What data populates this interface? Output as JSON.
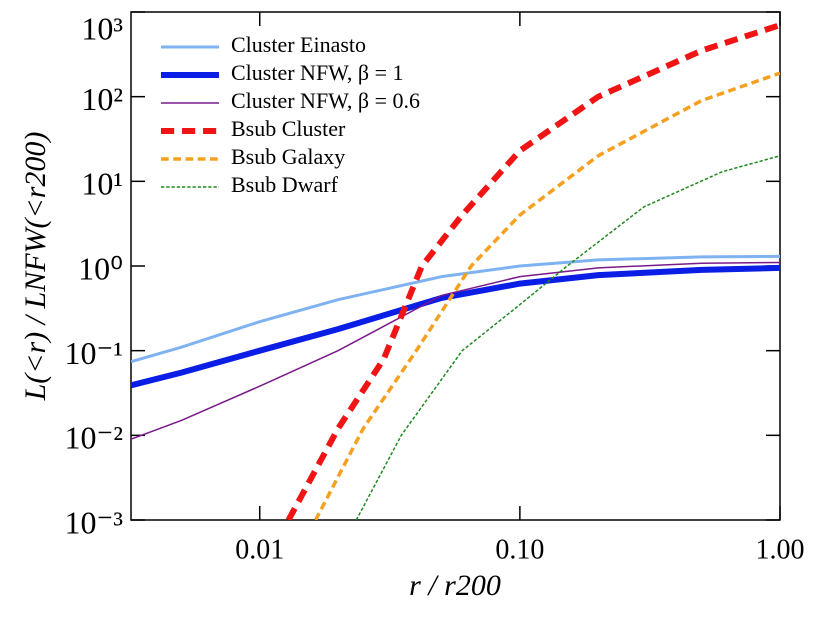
{
  "chart_data": {
    "type": "line",
    "x_label": "r / r200",
    "y_label": "L(<r) / LNFW(<r200)",
    "xlog": true,
    "ylog": true,
    "xlim": [
      0.0032,
      1
    ],
    "ylim": [
      0.001,
      1000
    ],
    "xticks": [
      {
        "value": 0.01,
        "label": "0.01"
      },
      {
        "value": 0.1,
        "label": "0.10"
      },
      {
        "value": 1,
        "label": "1.00"
      }
    ],
    "yticks": [
      {
        "value": 0.001,
        "label": "10⁻³"
      },
      {
        "value": 0.01,
        "label": "10⁻²"
      },
      {
        "value": 0.1,
        "label": "10⁻¹"
      },
      {
        "value": 1,
        "label": "10⁰"
      },
      {
        "value": 10,
        "label": "10¹"
      },
      {
        "value": 100,
        "label": "10²"
      },
      {
        "value": 1000,
        "label": "10³"
      }
    ],
    "legend": "upper-left",
    "series": [
      {
        "name": "Cluster Einasto",
        "color": "#7fb2f0",
        "width": 3,
        "dashed": false,
        "x": [
          0.0032,
          0.005,
          0.01,
          0.02,
          0.05,
          0.1,
          0.2,
          0.5,
          1
        ],
        "values": [
          0.074,
          0.11,
          0.22,
          0.4,
          0.75,
          1.0,
          1.18,
          1.28,
          1.3
        ]
      },
      {
        "name": "Cluster NFW, β = 1",
        "color": "#0a1ee6",
        "width": 6,
        "dashed": false,
        "x": [
          0.0032,
          0.005,
          0.01,
          0.02,
          0.05,
          0.1,
          0.2,
          0.5,
          1
        ],
        "values": [
          0.039,
          0.055,
          0.1,
          0.18,
          0.42,
          0.62,
          0.78,
          0.9,
          0.95
        ]
      },
      {
        "name": "Cluster NFW, β = 0.6",
        "color": "#7a1a8a",
        "width": 1.5,
        "dashed": false,
        "x": [
          0.0032,
          0.005,
          0.01,
          0.02,
          0.05,
          0.1,
          0.2,
          0.5,
          1
        ],
        "values": [
          0.009,
          0.015,
          0.038,
          0.1,
          0.45,
          0.75,
          0.95,
          1.08,
          1.1
        ]
      },
      {
        "name": "Bsub Cluster",
        "color": "#f01414",
        "width": 6,
        "dashed": true,
        "x": [
          0.0129,
          0.02,
          0.03,
          0.042,
          0.06,
          0.1,
          0.2,
          0.5,
          1
        ],
        "values": [
          0.001,
          0.012,
          0.08,
          1,
          4,
          23,
          100,
          350,
          700
        ]
      },
      {
        "name": "Bsub Galaxy",
        "color": "#f5a020",
        "width": 3.5,
        "dashed": true,
        "x": [
          0.0164,
          0.025,
          0.04,
          0.065,
          0.1,
          0.2,
          0.5,
          1
        ],
        "values": [
          0.001,
          0.012,
          0.1,
          1,
          4,
          20,
          90,
          190
        ]
      },
      {
        "name": "Bsub Dwarf",
        "color": "#1e8a1e",
        "width": 1.5,
        "dashed": true,
        "x": [
          0.0235,
          0.035,
          0.06,
          0.1,
          0.152,
          0.3,
          0.6,
          1
        ],
        "values": [
          0.001,
          0.01,
          0.1,
          0.35,
          1,
          5,
          13,
          20
        ]
      }
    ]
  }
}
